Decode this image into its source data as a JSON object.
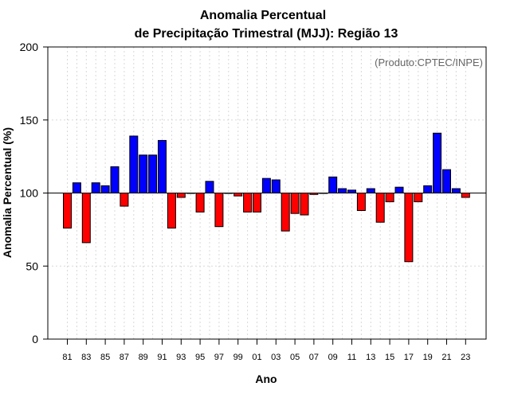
{
  "colors": {
    "positive": "#0000ff",
    "negative": "#ff0000",
    "bar_border": "#000000",
    "watermark": "#666666"
  },
  "chart_data": {
    "type": "bar",
    "title": "Anomalia Percentual",
    "subtitle": "de Precipitação Trimestral (MJJ): Região 13",
    "xlabel": "Ano",
    "ylabel": "Anomalia Percentual (%)",
    "ylim": [
      0,
      200
    ],
    "yticks": [
      0,
      50,
      100,
      150,
      200
    ],
    "baseline": 100,
    "grid": true,
    "annotation": "(Produto:CPTEC/INPE)",
    "categories": [
      "1981",
      "1982",
      "1983",
      "1984",
      "1985",
      "1986",
      "1987",
      "1988",
      "1989",
      "1990",
      "1991",
      "1992",
      "1993",
      "1994",
      "1995",
      "1996",
      "1997",
      "1998",
      "1999",
      "2000",
      "2001",
      "2002",
      "2003",
      "2004",
      "2005",
      "2006",
      "2007",
      "2008",
      "2009",
      "2010",
      "2011",
      "2012",
      "2013",
      "2014",
      "2015",
      "2016",
      "2017",
      "2018",
      "2019",
      "2020",
      "2021",
      "2022",
      "2023"
    ],
    "values": [
      76,
      107,
      66,
      107,
      105,
      118,
      91,
      139,
      126,
      126,
      136,
      76,
      97,
      100,
      87,
      108,
      77,
      100,
      98,
      87,
      87,
      110,
      109,
      74,
      86,
      85,
      99,
      100,
      111,
      103,
      102,
      88,
      103,
      80,
      94,
      104,
      53,
      94,
      105,
      141,
      116,
      103,
      97
    ],
    "xtick_labels": [
      "81",
      "83",
      "85",
      "87",
      "89",
      "91",
      "93",
      "95",
      "97",
      "99",
      "01",
      "03",
      "05",
      "07",
      "09",
      "11",
      "13",
      "15",
      "17",
      "19",
      "21",
      "23"
    ]
  }
}
